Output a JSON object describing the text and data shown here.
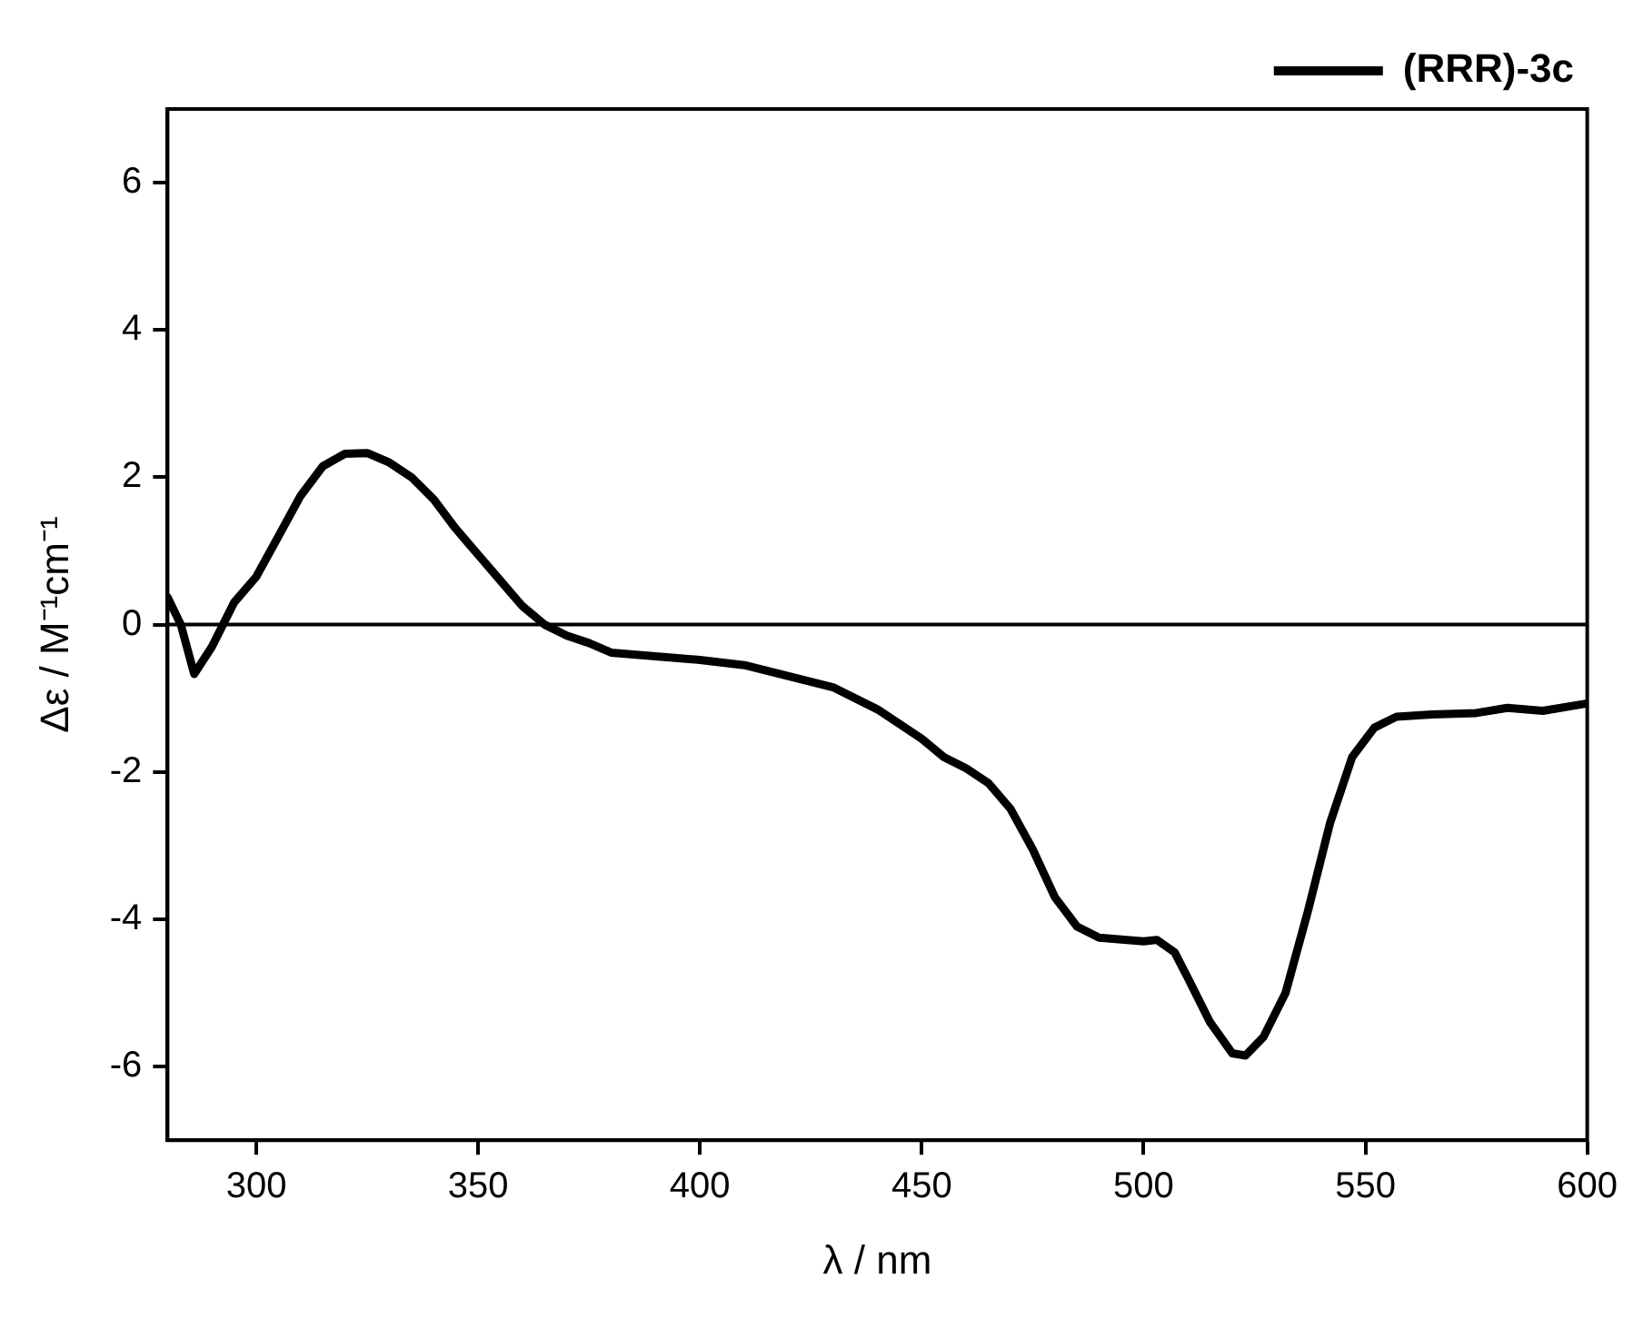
{
  "chart_data": {
    "type": "line",
    "xlabel": "λ / nm",
    "ylabel": "Δε / M⁻¹cm⁻¹",
    "xlim": [
      280,
      600
    ],
    "xticks": [
      300,
      350,
      400,
      450,
      500,
      550,
      600
    ],
    "ylim": [
      -7,
      7
    ],
    "yticks": [
      -6,
      -4,
      -2,
      0,
      2,
      4,
      6
    ],
    "grid": false,
    "legend": "top right",
    "marker": "none",
    "line_style": "solid",
    "ref_lines": [
      {
        "axis": "y",
        "value": 0,
        "color": "#000000"
      }
    ],
    "series": [
      {
        "name": "(RRR)-3c",
        "color": "#000000",
        "x": [
          280,
          283,
          286,
          290,
          295,
          300,
          305,
          310,
          315,
          320,
          325,
          330,
          335,
          340,
          345,
          350,
          355,
          360,
          365,
          370,
          375,
          380,
          390,
          400,
          410,
          420,
          430,
          440,
          450,
          455,
          460,
          465,
          470,
          475,
          480,
          485,
          490,
          500,
          503,
          507,
          510,
          515,
          520,
          523,
          527,
          532,
          537,
          542,
          547,
          552,
          557,
          565,
          575,
          582,
          590,
          600
        ],
        "values": [
          0.37,
          0.0,
          -0.67,
          -0.3,
          0.3,
          0.65,
          1.2,
          1.75,
          2.15,
          2.32,
          2.33,
          2.2,
          2.0,
          1.7,
          1.3,
          0.95,
          0.6,
          0.25,
          0.0,
          -0.15,
          -0.25,
          -0.38,
          -0.43,
          -0.48,
          -0.55,
          -0.7,
          -0.85,
          -1.15,
          -1.55,
          -1.8,
          -1.95,
          -2.15,
          -2.5,
          -3.05,
          -3.7,
          -4.1,
          -4.25,
          -4.3,
          -4.28,
          -4.45,
          -4.8,
          -5.4,
          -5.82,
          -5.85,
          -5.6,
          -5.0,
          -3.9,
          -2.7,
          -1.8,
          -1.4,
          -1.25,
          -1.22,
          -1.2,
          -1.13,
          -1.17,
          -1.07
        ]
      }
    ]
  }
}
